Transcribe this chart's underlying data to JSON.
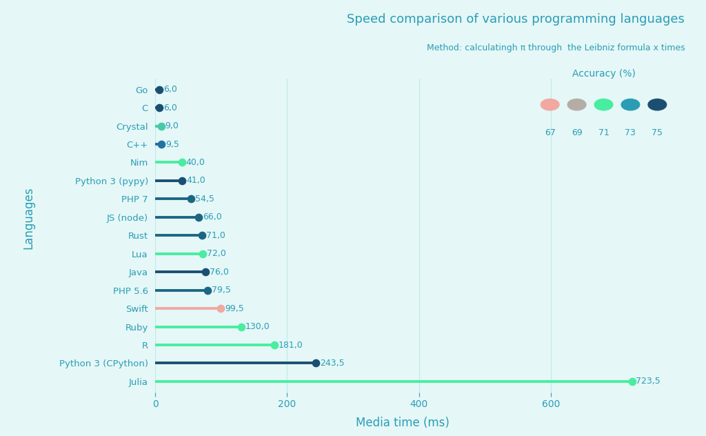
{
  "title": "Speed comparison of various programming languages",
  "subtitle": "Method: calculatingh π through  the Leibniz formula x times",
  "xlabel": "Media time (ms)",
  "ylabel": "Languages",
  "background_color": "#e5f7f7",
  "title_color": "#2a9db5",
  "subtitle_color": "#2a9db5",
  "axis_label_color": "#2a9db5",
  "tick_color": "#2a9db5",
  "languages": [
    "Go",
    "C",
    "Crystal",
    "C++",
    "Nim",
    "Python 3 (pypy)",
    "PHP 7",
    "JS (node)",
    "Rust",
    "Lua",
    "Java",
    "PHP 5.6",
    "Swift",
    "Ruby",
    "R",
    "Python 3 (CPython)",
    "Julia"
  ],
  "values": [
    6.0,
    6.0,
    9.0,
    9.5,
    40.0,
    41.0,
    54.5,
    66.0,
    71.0,
    72.0,
    76.0,
    79.5,
    99.5,
    130.0,
    181.0,
    243.5,
    723.5
  ],
  "colors": [
    "#1b4f72",
    "#1b4f72",
    "#48c9a9",
    "#2471a3",
    "#48eda0",
    "#1b4f72",
    "#1b6783",
    "#1b6783",
    "#1b6783",
    "#48eda0",
    "#1b4f72",
    "#1b6783",
    "#f1a8a0",
    "#48eda0",
    "#48eda0",
    "#1b4f72",
    "#48eda0"
  ],
  "legend_accuracies": [
    67,
    69,
    71,
    73,
    75
  ],
  "legend_colors": [
    "#f1a8a0",
    "#b5ada5",
    "#48eda0",
    "#2a9db5",
    "#1b4f72"
  ],
  "xlim": [
    0,
    750
  ],
  "xticks": [
    0,
    200,
    400,
    600
  ],
  "value_labels": [
    "6,0",
    "6,0",
    "9,0",
    "9,5",
    "40,0",
    "41,0",
    "54,5",
    "66,0",
    "71,0",
    "72,0",
    "76,0",
    "79,5",
    "99,5",
    "130,0",
    "181,0",
    "243,5",
    "723,5"
  ],
  "line_width": 2.8,
  "dot_size": 55
}
